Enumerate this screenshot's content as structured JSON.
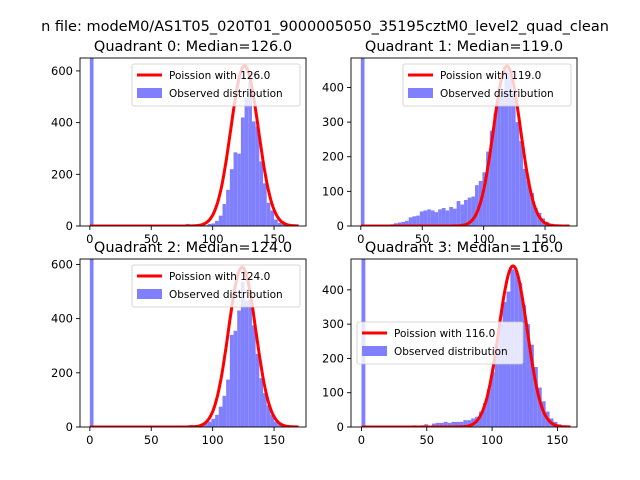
{
  "figure_title": "n file: modeM0/AS1T05_020T01_9000005050_35195cztM0_level2_quad_clean",
  "colors": {
    "hist": "#8080ff",
    "poisson": "#ff0000",
    "axis": "#000000",
    "background": "#ffffff"
  },
  "chart_data": [
    {
      "type": "bar+line",
      "title": "Quadrant 0: Median=126.0",
      "xlim": [
        -8,
        176
      ],
      "ylim": [
        0,
        650
      ],
      "xticks": [
        0,
        50,
        100,
        150
      ],
      "yticks": [
        0,
        200,
        400,
        600
      ],
      "legend": {
        "position": "top-right",
        "entries": [
          "Poission with 126.0",
          "Observed distribution"
        ]
      },
      "poisson_mean": 126.0,
      "poisson_peak": 620,
      "poisson_sigma": 11.2,
      "poisson_x": [
        0,
        170
      ],
      "hist": [
        {
          "x": 0,
          "w": 3,
          "y": 650
        },
        {
          "x": 78,
          "w": 3,
          "y": 8
        },
        {
          "x": 81,
          "w": 3,
          "y": 3
        },
        {
          "x": 93,
          "w": 3,
          "y": 3
        },
        {
          "x": 96,
          "w": 3,
          "y": 8
        },
        {
          "x": 99,
          "w": 3,
          "y": 10
        },
        {
          "x": 102,
          "w": 3,
          "y": 20
        },
        {
          "x": 105,
          "w": 3,
          "y": 40
        },
        {
          "x": 108,
          "w": 3,
          "y": 85
        },
        {
          "x": 111,
          "w": 3,
          "y": 140
        },
        {
          "x": 114,
          "w": 3,
          "y": 220
        },
        {
          "x": 117,
          "w": 3,
          "y": 285
        },
        {
          "x": 120,
          "w": 3,
          "y": 280
        },
        {
          "x": 123,
          "w": 3,
          "y": 420
        },
        {
          "x": 126,
          "w": 3,
          "y": 495
        },
        {
          "x": 129,
          "w": 3,
          "y": 560
        },
        {
          "x": 132,
          "w": 3,
          "y": 405
        },
        {
          "x": 135,
          "w": 3,
          "y": 385
        },
        {
          "x": 138,
          "w": 3,
          "y": 250
        },
        {
          "x": 141,
          "w": 3,
          "y": 165
        },
        {
          "x": 144,
          "w": 3,
          "y": 90
        },
        {
          "x": 147,
          "w": 3,
          "y": 60
        },
        {
          "x": 150,
          "w": 3,
          "y": 25
        },
        {
          "x": 153,
          "w": 3,
          "y": 12
        },
        {
          "x": 156,
          "w": 3,
          "y": 8
        },
        {
          "x": 159,
          "w": 3,
          "y": 5
        },
        {
          "x": 162,
          "w": 3,
          "y": 3
        }
      ]
    },
    {
      "type": "bar+line",
      "title": "Quadrant 1: Median=119.0",
      "xlim": [
        -8,
        176
      ],
      "ylim": [
        0,
        485
      ],
      "xticks": [
        0,
        50,
        100,
        150
      ],
      "yticks": [
        0,
        100,
        200,
        300,
        400
      ],
      "legend": {
        "position": "top-right",
        "entries": [
          "Poission with 119.0",
          "Observed distribution"
        ]
      },
      "poisson_mean": 119.0,
      "poisson_peak": 462,
      "poisson_sigma": 11.0,
      "poisson_x": [
        0,
        170
      ],
      "hist": [
        {
          "x": 0,
          "w": 3,
          "y": 485
        },
        {
          "x": 21,
          "w": 3,
          "y": 3
        },
        {
          "x": 24,
          "w": 3,
          "y": 5
        },
        {
          "x": 27,
          "w": 3,
          "y": 8
        },
        {
          "x": 30,
          "w": 3,
          "y": 10
        },
        {
          "x": 33,
          "w": 3,
          "y": 12
        },
        {
          "x": 36,
          "w": 3,
          "y": 15
        },
        {
          "x": 39,
          "w": 3,
          "y": 25
        },
        {
          "x": 42,
          "w": 3,
          "y": 28
        },
        {
          "x": 45,
          "w": 3,
          "y": 30
        },
        {
          "x": 48,
          "w": 3,
          "y": 42
        },
        {
          "x": 51,
          "w": 3,
          "y": 45
        },
        {
          "x": 54,
          "w": 3,
          "y": 48
        },
        {
          "x": 57,
          "w": 3,
          "y": 45
        },
        {
          "x": 60,
          "w": 3,
          "y": 40
        },
        {
          "x": 63,
          "w": 3,
          "y": 48
        },
        {
          "x": 66,
          "w": 3,
          "y": 52
        },
        {
          "x": 69,
          "w": 3,
          "y": 45
        },
        {
          "x": 72,
          "w": 3,
          "y": 55
        },
        {
          "x": 75,
          "w": 3,
          "y": 50
        },
        {
          "x": 78,
          "w": 3,
          "y": 72
        },
        {
          "x": 81,
          "w": 3,
          "y": 62
        },
        {
          "x": 84,
          "w": 3,
          "y": 75
        },
        {
          "x": 87,
          "w": 3,
          "y": 82
        },
        {
          "x": 90,
          "w": 3,
          "y": 85
        },
        {
          "x": 93,
          "w": 3,
          "y": 118
        },
        {
          "x": 96,
          "w": 3,
          "y": 130
        },
        {
          "x": 99,
          "w": 3,
          "y": 155
        },
        {
          "x": 102,
          "w": 3,
          "y": 215
        },
        {
          "x": 105,
          "w": 3,
          "y": 275
        },
        {
          "x": 108,
          "w": 3,
          "y": 325
        },
        {
          "x": 111,
          "w": 3,
          "y": 380
        },
        {
          "x": 114,
          "w": 3,
          "y": 390
        },
        {
          "x": 117,
          "w": 3,
          "y": 450
        },
        {
          "x": 120,
          "w": 3,
          "y": 440
        },
        {
          "x": 123,
          "w": 3,
          "y": 385
        },
        {
          "x": 126,
          "w": 3,
          "y": 300
        },
        {
          "x": 129,
          "w": 3,
          "y": 245
        },
        {
          "x": 132,
          "w": 3,
          "y": 165
        },
        {
          "x": 135,
          "w": 3,
          "y": 130
        },
        {
          "x": 138,
          "w": 3,
          "y": 95
        },
        {
          "x": 141,
          "w": 3,
          "y": 52
        },
        {
          "x": 144,
          "w": 3,
          "y": 38
        },
        {
          "x": 147,
          "w": 3,
          "y": 22
        },
        {
          "x": 150,
          "w": 3,
          "y": 12
        },
        {
          "x": 153,
          "w": 3,
          "y": 6
        }
      ]
    },
    {
      "type": "bar+line",
      "title": "Quadrant 2: Median=124.0",
      "xlim": [
        -8,
        176
      ],
      "ylim": [
        0,
        620
      ],
      "xticks": [
        0,
        50,
        100,
        150
      ],
      "yticks": [
        0,
        200,
        400,
        600
      ],
      "legend": {
        "position": "top-right",
        "entries": [
          "Poission with 124.0",
          "Observed distribution"
        ]
      },
      "poisson_mean": 124.0,
      "poisson_peak": 590,
      "poisson_sigma": 11.1,
      "poisson_x": [
        0,
        170
      ],
      "hist": [
        {
          "x": 0,
          "w": 3,
          "y": 620
        },
        {
          "x": 75,
          "w": 3,
          "y": 5
        },
        {
          "x": 81,
          "w": 3,
          "y": 8
        },
        {
          "x": 87,
          "w": 3,
          "y": 5
        },
        {
          "x": 90,
          "w": 3,
          "y": 10
        },
        {
          "x": 93,
          "w": 3,
          "y": 15
        },
        {
          "x": 96,
          "w": 3,
          "y": 20
        },
        {
          "x": 99,
          "w": 3,
          "y": 30
        },
        {
          "x": 102,
          "w": 3,
          "y": 45
        },
        {
          "x": 105,
          "w": 3,
          "y": 75
        },
        {
          "x": 108,
          "w": 3,
          "y": 115
        },
        {
          "x": 111,
          "w": 3,
          "y": 175
        },
        {
          "x": 114,
          "w": 3,
          "y": 340
        },
        {
          "x": 117,
          "w": 3,
          "y": 355
        },
        {
          "x": 120,
          "w": 3,
          "y": 430
        },
        {
          "x": 123,
          "w": 3,
          "y": 535
        },
        {
          "x": 126,
          "w": 3,
          "y": 465
        },
        {
          "x": 129,
          "w": 3,
          "y": 470
        },
        {
          "x": 132,
          "w": 3,
          "y": 375
        },
        {
          "x": 135,
          "w": 3,
          "y": 270
        },
        {
          "x": 138,
          "w": 3,
          "y": 180
        },
        {
          "x": 141,
          "w": 3,
          "y": 125
        },
        {
          "x": 144,
          "w": 3,
          "y": 80
        },
        {
          "x": 147,
          "w": 3,
          "y": 45
        },
        {
          "x": 150,
          "w": 3,
          "y": 20
        },
        {
          "x": 153,
          "w": 3,
          "y": 10
        },
        {
          "x": 156,
          "w": 3,
          "y": 5
        }
      ]
    },
    {
      "type": "bar+line",
      "title": "Quadrant 3: Median=116.0",
      "xlim": [
        -8,
        165
      ],
      "ylim": [
        0,
        490
      ],
      "xticks": [
        0,
        50,
        100,
        150
      ],
      "yticks": [
        0,
        100,
        200,
        300,
        400
      ],
      "legend": {
        "position": "center-left",
        "entries": [
          "Poission with 116.0",
          "Observed distribution"
        ]
      },
      "poisson_mean": 116.0,
      "poisson_peak": 470,
      "poisson_sigma": 10.8,
      "poisson_x": [
        0,
        160
      ],
      "hist": [
        {
          "x": 0,
          "w": 3,
          "y": 490
        },
        {
          "x": 21,
          "w": 3,
          "y": 2
        },
        {
          "x": 30,
          "w": 3,
          "y": 4
        },
        {
          "x": 39,
          "w": 3,
          "y": 5
        },
        {
          "x": 45,
          "w": 3,
          "y": 5
        },
        {
          "x": 48,
          "w": 3,
          "y": 8
        },
        {
          "x": 54,
          "w": 3,
          "y": 10
        },
        {
          "x": 57,
          "w": 3,
          "y": 12
        },
        {
          "x": 60,
          "w": 3,
          "y": 12
        },
        {
          "x": 63,
          "w": 3,
          "y": 15
        },
        {
          "x": 66,
          "w": 3,
          "y": 12
        },
        {
          "x": 69,
          "w": 3,
          "y": 15
        },
        {
          "x": 72,
          "w": 3,
          "y": 15
        },
        {
          "x": 75,
          "w": 3,
          "y": 15
        },
        {
          "x": 78,
          "w": 3,
          "y": 20
        },
        {
          "x": 81,
          "w": 3,
          "y": 20
        },
        {
          "x": 84,
          "w": 3,
          "y": 25
        },
        {
          "x": 87,
          "w": 3,
          "y": 30
        },
        {
          "x": 90,
          "w": 3,
          "y": 45
        },
        {
          "x": 93,
          "w": 3,
          "y": 70
        },
        {
          "x": 96,
          "w": 3,
          "y": 110
        },
        {
          "x": 99,
          "w": 3,
          "y": 160
        },
        {
          "x": 102,
          "w": 3,
          "y": 240
        },
        {
          "x": 105,
          "w": 3,
          "y": 300
        },
        {
          "x": 108,
          "w": 3,
          "y": 365
        },
        {
          "x": 111,
          "w": 3,
          "y": 395
        },
        {
          "x": 114,
          "w": 3,
          "y": 460
        },
        {
          "x": 117,
          "w": 3,
          "y": 455
        },
        {
          "x": 120,
          "w": 3,
          "y": 420
        },
        {
          "x": 123,
          "w": 3,
          "y": 355
        },
        {
          "x": 126,
          "w": 3,
          "y": 300
        },
        {
          "x": 129,
          "w": 3,
          "y": 240
        },
        {
          "x": 132,
          "w": 3,
          "y": 175
        },
        {
          "x": 135,
          "w": 3,
          "y": 115
        },
        {
          "x": 138,
          "w": 3,
          "y": 75
        },
        {
          "x": 141,
          "w": 3,
          "y": 45
        },
        {
          "x": 144,
          "w": 3,
          "y": 25
        },
        {
          "x": 147,
          "w": 3,
          "y": 15
        },
        {
          "x": 150,
          "w": 3,
          "y": 8
        },
        {
          "x": 153,
          "w": 3,
          "y": 4
        }
      ]
    }
  ]
}
